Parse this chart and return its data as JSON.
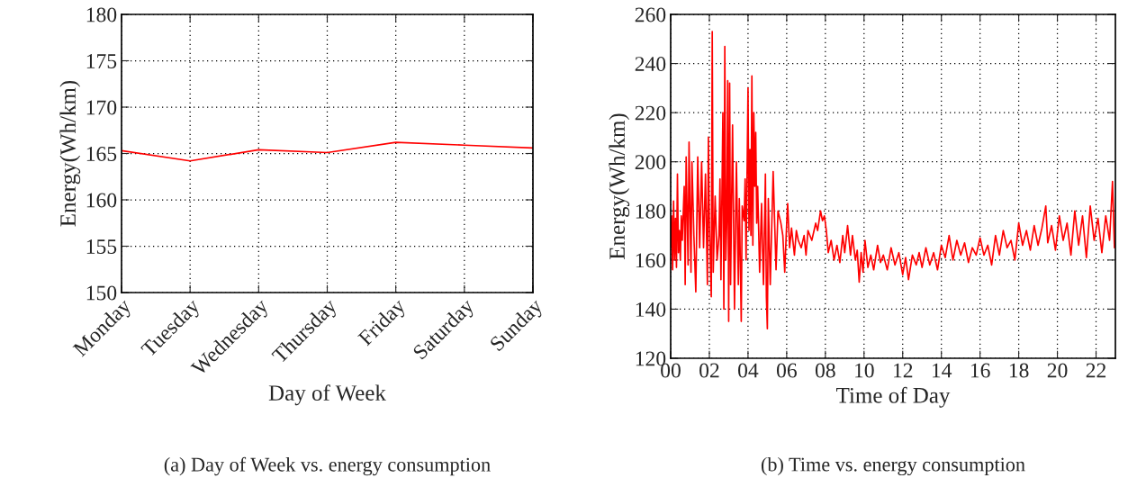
{
  "chart_data": [
    {
      "type": "line",
      "xlabel": "Day of Week",
      "ylabel": "Energy(Wh/km)",
      "categories": [
        "Monday",
        "Tuesday",
        "Wednesday",
        "Thursday",
        "Friday",
        "Saturday",
        "Sunday"
      ],
      "series": [
        {
          "color": "#ff0000",
          "values": [
            165.3,
            164.2,
            165.4,
            165.1,
            166.2,
            165.9,
            165.6
          ]
        }
      ],
      "ylim": [
        150,
        180
      ],
      "yticks": [
        150,
        155,
        160,
        165,
        170,
        175,
        180
      ],
      "grid": true,
      "line_style": "solid",
      "marker": "none",
      "legend": false,
      "annotations": [
        "(a) Day of Week vs. energy consumption"
      ]
    },
    {
      "type": "line",
      "xlabel": "Time of Day",
      "ylabel": "Energy(Wh/km)",
      "x": [
        0.0,
        0.05,
        0.1,
        0.15,
        0.2,
        0.25,
        0.3,
        0.35,
        0.4,
        0.45,
        0.5,
        0.55,
        0.6,
        0.7,
        0.75,
        0.8,
        0.9,
        0.95,
        1.05,
        1.1,
        1.2,
        1.3,
        1.4,
        1.5,
        1.6,
        1.7,
        1.8,
        1.9,
        1.95,
        2.0,
        2.1,
        2.15,
        2.2,
        2.3,
        2.4,
        2.5,
        2.55,
        2.6,
        2.7,
        2.75,
        2.8,
        2.85,
        2.9,
        2.95,
        3.0,
        3.05,
        3.1,
        3.2,
        3.3,
        3.4,
        3.5,
        3.55,
        3.65,
        3.7,
        3.8,
        3.85,
        3.9,
        4.0,
        4.05,
        4.1,
        4.15,
        4.2,
        4.25,
        4.3,
        4.35,
        4.4,
        4.45,
        4.5,
        4.6,
        4.7,
        4.75,
        4.8,
        4.9,
        4.95,
        5.0,
        5.05,
        5.15,
        5.3,
        5.45,
        5.55,
        5.7,
        5.8,
        5.9,
        6.0,
        6.05,
        6.15,
        6.25,
        6.4,
        6.5,
        6.6,
        6.75,
        6.9,
        7.0,
        7.1,
        7.3,
        7.5,
        7.6,
        7.75,
        7.85,
        7.95,
        8.05,
        8.15,
        8.3,
        8.45,
        8.6,
        8.75,
        8.9,
        9.0,
        9.15,
        9.3,
        9.4,
        9.55,
        9.65,
        9.75,
        9.85,
        9.95,
        10.05,
        10.2,
        10.35,
        10.5,
        10.7,
        10.85,
        11.0,
        11.2,
        11.4,
        11.6,
        11.8,
        12.0,
        12.15,
        12.3,
        12.5,
        12.7,
        12.85,
        13.0,
        13.2,
        13.4,
        13.6,
        13.8,
        14.0,
        14.2,
        14.4,
        14.6,
        14.8,
        15.0,
        15.2,
        15.4,
        15.6,
        15.8,
        16.0,
        16.2,
        16.4,
        16.6,
        16.8,
        17.0,
        17.2,
        17.4,
        17.6,
        17.8,
        18.0,
        18.2,
        18.4,
        18.6,
        18.8,
        19.0,
        19.2,
        19.4,
        19.5,
        19.7,
        19.9,
        20.1,
        20.3,
        20.5,
        20.7,
        20.9,
        21.1,
        21.3,
        21.5,
        21.7,
        21.9,
        22.1,
        22.3,
        22.5,
        22.7,
        22.85,
        22.95
      ],
      "series": [
        {
          "color": "#ff0000",
          "values": [
            165,
            178,
            156,
            184,
            160,
            177,
            157,
            195,
            163,
            172,
            160,
            178,
            168,
            190,
            150,
            202,
            158,
            208,
            155,
            200,
            170,
            147,
            202,
            165,
            200,
            165,
            195,
            150,
            210,
            175,
            145,
            253,
            155,
            186,
            160,
            170,
            193,
            152,
            220,
            140,
            247,
            160,
            175,
            233,
            135,
            232,
            150,
            215,
            140,
            200,
            150,
            185,
            135,
            182,
            176,
            193,
            160,
            230,
            172,
            205,
            170,
            235,
            166,
            220,
            190,
            212,
            175,
            190,
            155,
            183,
            165,
            150,
            195,
            145,
            132,
            185,
            150,
            196,
            156,
            180,
            175,
            170,
            155,
            175,
            183,
            165,
            173,
            162,
            172,
            168,
            165,
            170,
            162,
            172,
            168,
            175,
            172,
            180,
            176,
            178,
            172,
            163,
            168,
            160,
            166,
            159,
            170,
            163,
            174,
            162,
            170,
            160,
            164,
            151,
            163,
            155,
            168,
            157,
            162,
            156,
            166,
            159,
            162,
            156,
            165,
            158,
            163,
            154,
            161,
            152,
            162,
            158,
            163,
            157,
            165,
            158,
            163,
            156,
            166,
            161,
            170,
            160,
            168,
            162,
            167,
            159,
            165,
            162,
            169,
            162,
            166,
            158,
            170,
            162,
            172,
            165,
            168,
            160,
            175,
            166,
            172,
            164,
            174,
            166,
            173,
            182,
            167,
            174,
            164,
            178,
            168,
            175,
            162,
            180,
            166,
            178,
            161,
            182,
            168,
            177,
            163,
            178,
            168,
            192,
            165
          ]
        }
      ],
      "xlim": [
        0,
        23
      ],
      "xticks": [
        {
          "value": 0,
          "label": "00"
        },
        {
          "value": 2,
          "label": "02"
        },
        {
          "value": 4,
          "label": "04"
        },
        {
          "value": 6,
          "label": "06"
        },
        {
          "value": 8,
          "label": "08"
        },
        10,
        12,
        14,
        16,
        18,
        20,
        22
      ],
      "ylim": [
        120,
        260
      ],
      "yticks": [
        120,
        140,
        160,
        180,
        200,
        220,
        240,
        260
      ],
      "grid": true,
      "line_style": "solid",
      "marker": "none",
      "legend": false,
      "annotations": [
        "(b) Time vs. energy consumption"
      ]
    }
  ]
}
